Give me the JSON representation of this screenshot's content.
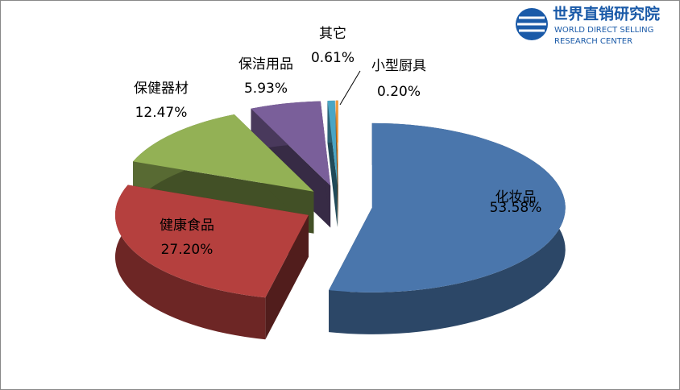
{
  "chart_data": {
    "type": "pie3d",
    "logo_title": "世界直销研究院",
    "logo_line1": "WORLD DIRECT SELLING",
    "logo_line2": "RESEARCH CENTER",
    "categories": [
      "化妆品",
      "健康食品",
      "保健器材",
      "保洁用品",
      "其它",
      "小型厨具"
    ],
    "values": [
      53.58,
      27.2,
      12.47,
      5.93,
      0.61,
      0.2
    ],
    "value_labels": [
      "53.58%",
      "27.20%",
      "12.47%",
      "5.93%",
      "0.61%",
      "0.20%"
    ],
    "colors": [
      "#4a76ac",
      "#b5403e",
      "#93b155",
      "#7a5f9a",
      "#4aa5c4",
      "#f29a3c"
    ]
  }
}
